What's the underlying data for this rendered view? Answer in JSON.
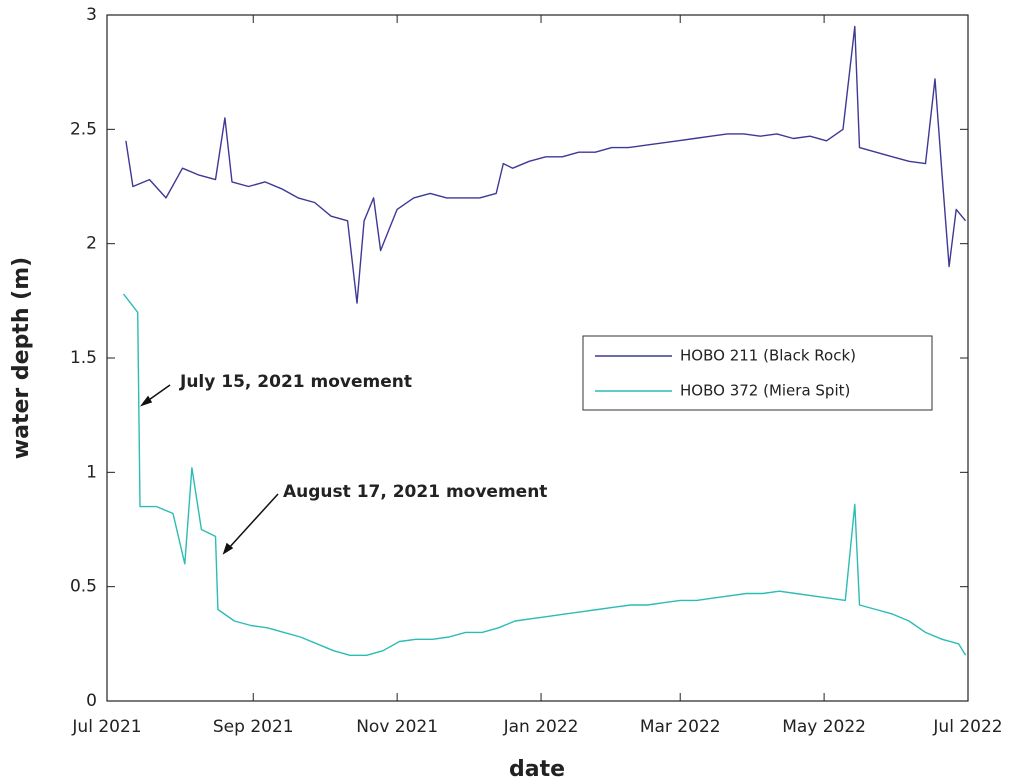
{
  "chart_data": {
    "type": "line",
    "xlabel": "date",
    "ylabel": "water depth (m)",
    "xlim": [
      "2021-07-01",
      "2022-07-01"
    ],
    "xticks": [
      {
        "value": "2021-07-01",
        "label": "Jul 2021"
      },
      {
        "value": "2021-09-01",
        "label": "Sep 2021"
      },
      {
        "value": "2021-11-01",
        "label": "Nov 2021"
      },
      {
        "value": "2022-01-01",
        "label": "Jan 2022"
      },
      {
        "value": "2022-03-01",
        "label": "Mar 2022"
      },
      {
        "value": "2022-05-01",
        "label": "May 2022"
      },
      {
        "value": "2022-07-01",
        "label": "Jul 2022"
      }
    ],
    "ylim": [
      0,
      3
    ],
    "yticks": [
      0,
      0.5,
      1,
      1.5,
      2,
      2.5,
      3
    ],
    "legend": "right",
    "series": [
      {
        "name": "HOBO 211 (Black Rock)",
        "color": "#3e3896",
        "x": [
          "2021-07-09",
          "2021-07-12",
          "2021-07-19",
          "2021-07-26",
          "2021-08-02",
          "2021-08-09",
          "2021-08-16",
          "2021-08-20",
          "2021-08-23",
          "2021-08-30",
          "2021-09-06",
          "2021-09-13",
          "2021-09-20",
          "2021-09-27",
          "2021-10-04",
          "2021-10-11",
          "2021-10-15",
          "2021-10-18",
          "2021-10-22",
          "2021-10-25",
          "2021-11-01",
          "2021-11-08",
          "2021-11-15",
          "2021-11-22",
          "2021-11-29",
          "2021-12-06",
          "2021-12-13",
          "2021-12-16",
          "2021-12-20",
          "2021-12-27",
          "2022-01-03",
          "2022-01-10",
          "2022-01-17",
          "2022-01-24",
          "2022-01-31",
          "2022-02-07",
          "2022-02-14",
          "2022-02-21",
          "2022-02-28",
          "2022-03-07",
          "2022-03-14",
          "2022-03-21",
          "2022-03-28",
          "2022-04-04",
          "2022-04-11",
          "2022-04-18",
          "2022-04-25",
          "2022-05-02",
          "2022-05-09",
          "2022-05-14",
          "2022-05-16",
          "2022-05-23",
          "2022-05-30",
          "2022-06-06",
          "2022-06-13",
          "2022-06-17",
          "2022-06-20",
          "2022-06-23",
          "2022-06-26",
          "2022-06-30"
        ],
        "values": [
          2.45,
          2.25,
          2.28,
          2.2,
          2.33,
          2.3,
          2.28,
          2.55,
          2.27,
          2.25,
          2.27,
          2.24,
          2.2,
          2.18,
          2.12,
          2.1,
          1.74,
          2.1,
          2.2,
          1.97,
          2.15,
          2.2,
          2.22,
          2.2,
          2.2,
          2.2,
          2.22,
          2.35,
          2.33,
          2.36,
          2.38,
          2.38,
          2.4,
          2.4,
          2.42,
          2.42,
          2.43,
          2.44,
          2.45,
          2.46,
          2.47,
          2.48,
          2.48,
          2.47,
          2.48,
          2.46,
          2.47,
          2.45,
          2.5,
          2.95,
          2.42,
          2.4,
          2.38,
          2.36,
          2.35,
          2.72,
          2.3,
          1.9,
          2.15,
          2.1
        ]
      },
      {
        "name": "HOBO 372 (Miera Spit)",
        "color": "#2cbcb6",
        "x": [
          "2021-07-08",
          "2021-07-14",
          "2021-07-15",
          "2021-07-22",
          "2021-07-29",
          "2021-08-03",
          "2021-08-06",
          "2021-08-10",
          "2021-08-16",
          "2021-08-17",
          "2021-08-24",
          "2021-08-31",
          "2021-09-07",
          "2021-09-14",
          "2021-09-21",
          "2021-09-28",
          "2021-10-05",
          "2021-10-12",
          "2021-10-19",
          "2021-10-26",
          "2021-11-02",
          "2021-11-09",
          "2021-11-16",
          "2021-11-23",
          "2021-11-30",
          "2021-12-07",
          "2021-12-14",
          "2021-12-21",
          "2021-12-28",
          "2022-01-04",
          "2022-01-11",
          "2022-01-18",
          "2022-01-25",
          "2022-02-01",
          "2022-02-08",
          "2022-02-15",
          "2022-02-22",
          "2022-03-01",
          "2022-03-08",
          "2022-03-15",
          "2022-03-22",
          "2022-03-29",
          "2022-04-05",
          "2022-04-12",
          "2022-04-19",
          "2022-04-26",
          "2022-05-03",
          "2022-05-10",
          "2022-05-14",
          "2022-05-16",
          "2022-05-23",
          "2022-05-30",
          "2022-06-06",
          "2022-06-13",
          "2022-06-20",
          "2022-06-27",
          "2022-06-30"
        ],
        "values": [
          1.78,
          1.7,
          0.85,
          0.85,
          0.82,
          0.6,
          1.02,
          0.75,
          0.72,
          0.4,
          0.35,
          0.33,
          0.32,
          0.3,
          0.28,
          0.25,
          0.22,
          0.2,
          0.2,
          0.22,
          0.26,
          0.27,
          0.27,
          0.28,
          0.3,
          0.3,
          0.32,
          0.35,
          0.36,
          0.37,
          0.38,
          0.39,
          0.4,
          0.41,
          0.42,
          0.42,
          0.43,
          0.44,
          0.44,
          0.45,
          0.46,
          0.47,
          0.47,
          0.48,
          0.47,
          0.46,
          0.45,
          0.44,
          0.86,
          0.42,
          0.4,
          0.38,
          0.35,
          0.3,
          0.27,
          0.25,
          0.2
        ]
      }
    ],
    "annotations": [
      "July 15, 2021 movement",
      "August 17, 2021 movement"
    ]
  }
}
